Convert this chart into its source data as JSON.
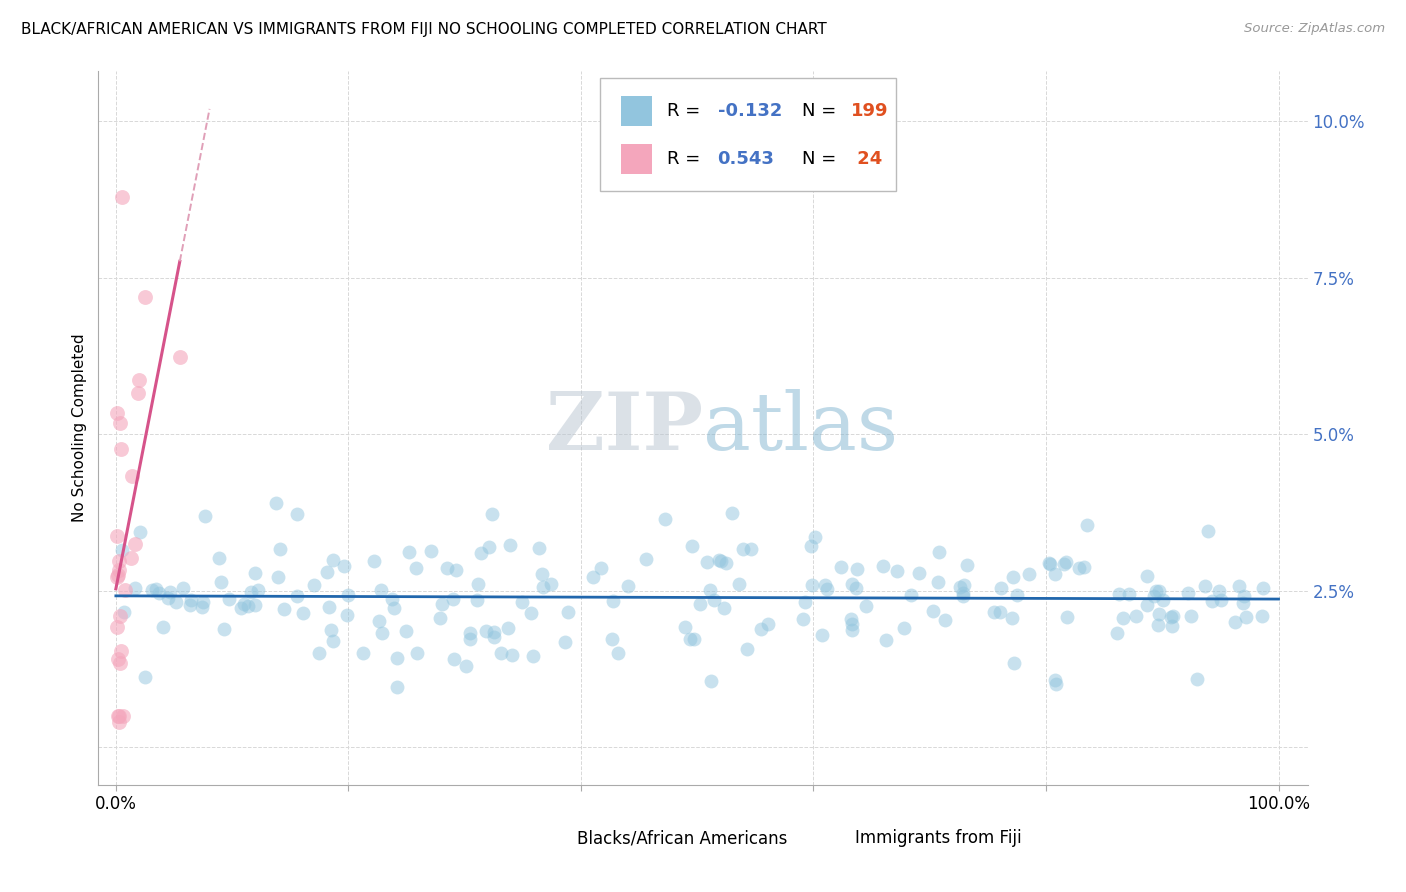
{
  "title": "BLACK/AFRICAN AMERICAN VS IMMIGRANTS FROM FIJI NO SCHOOLING COMPLETED CORRELATION CHART",
  "source": "Source: ZipAtlas.com",
  "ylabel": "No Schooling Completed",
  "blue_R": -0.132,
  "blue_N": 199,
  "pink_R": 0.543,
  "pink_N": 24,
  "blue_color": "#92c5de",
  "pink_color": "#f4a6bc",
  "blue_line_color": "#2166ac",
  "pink_line_color": "#d6538a",
  "pink_dash_color": "#e0a0b8",
  "watermark_zip_color": "#b8c4d0",
  "watermark_atlas_color": "#80b4d0",
  "legend_label_blue": "Blacks/African Americans",
  "legend_label_pink": "Immigrants from Fiji",
  "legend_R_color": "#4472c4",
  "legend_N_color": "#e05020",
  "blue_scatter_seed": 42,
  "pink_scatter_seed": 15,
  "ylim_min": -0.006,
  "ylim_max": 0.108,
  "xlim_min": -0.015,
  "xlim_max": 1.025
}
